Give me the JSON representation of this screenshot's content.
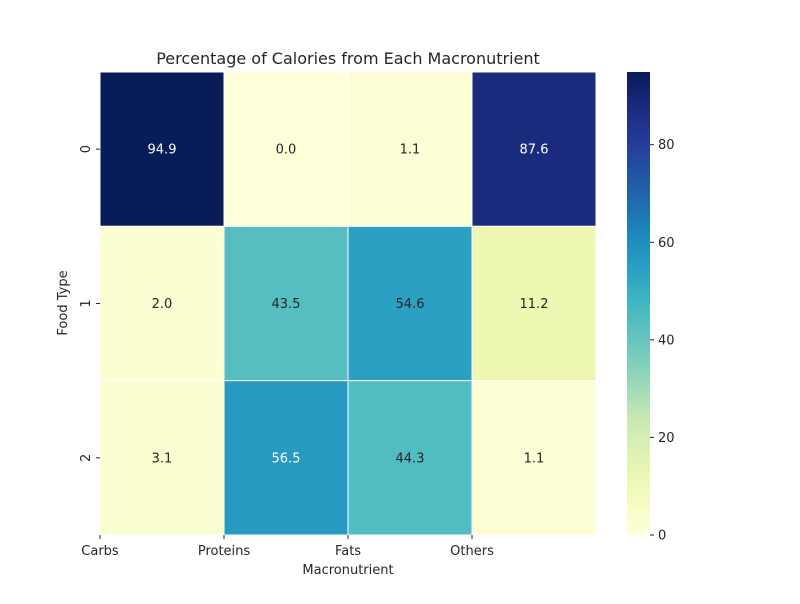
{
  "chart_data": {
    "type": "heatmap",
    "title": "Percentage of Calories from Each Macronutrient",
    "xlabel": "Macronutrient",
    "ylabel": "Food Type",
    "x_categories": [
      "Carbs",
      "Proteins",
      "Fats",
      "Others"
    ],
    "y_categories": [
      "0",
      "1",
      "2"
    ],
    "values": [
      [
        94.9,
        0.0,
        1.1,
        87.6
      ],
      [
        2.0,
        43.5,
        54.6,
        11.2
      ],
      [
        3.1,
        56.5,
        44.3,
        1.1
      ]
    ],
    "value_format": "one-decimal",
    "colormap": "YlGnBu",
    "colorbar": {
      "min": 0,
      "max": 94.9,
      "ticks": [
        0,
        20,
        40,
        60,
        80
      ],
      "position": "right"
    },
    "grid": true,
    "grid_color": "#ffffff"
  }
}
